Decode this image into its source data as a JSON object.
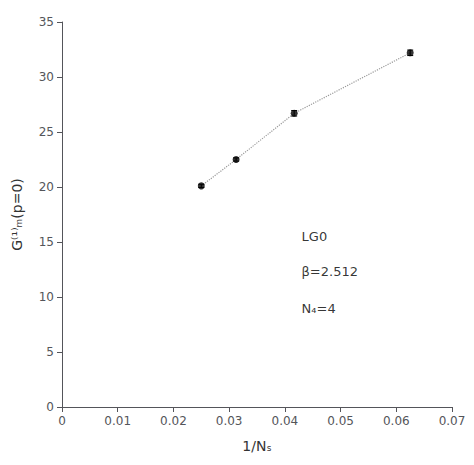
{
  "chart_data": {
    "type": "scatter",
    "xlabel": "1/Nₛ",
    "ylabel": "G⁽¹⁾ₘ(p=0)",
    "x": [
      0.025,
      0.03125,
      0.04167,
      0.0625
    ],
    "series": [
      {
        "type": "line",
        "color": "#999999",
        "line_style": "dotted",
        "values": [
          20.1,
          22.5,
          26.7,
          32.2
        ]
      },
      {
        "type": "scatter",
        "color": "#000000",
        "marker": "circle",
        "values": [
          20.1,
          22.5,
          26.7,
          32.2
        ],
        "yerr": [
          0.15,
          0.15,
          0.25,
          0.25
        ]
      }
    ],
    "annotations": [
      {
        "text": "LG0",
        "x": 0.043,
        "y": 15.5
      },
      {
        "text": "β=2.512",
        "x": 0.043,
        "y": 12.3
      },
      {
        "text": "N₄=4",
        "x": 0.043,
        "y": 9.0
      }
    ],
    "xlim": [
      0,
      0.07
    ],
    "xticks": [
      0,
      0.01,
      0.02,
      0.03,
      0.04,
      0.05,
      0.06,
      0.07
    ],
    "ylim": [
      0,
      35
    ],
    "yticks": [
      0,
      5,
      10,
      15,
      20,
      25,
      30,
      35
    ],
    "grid": false
  }
}
